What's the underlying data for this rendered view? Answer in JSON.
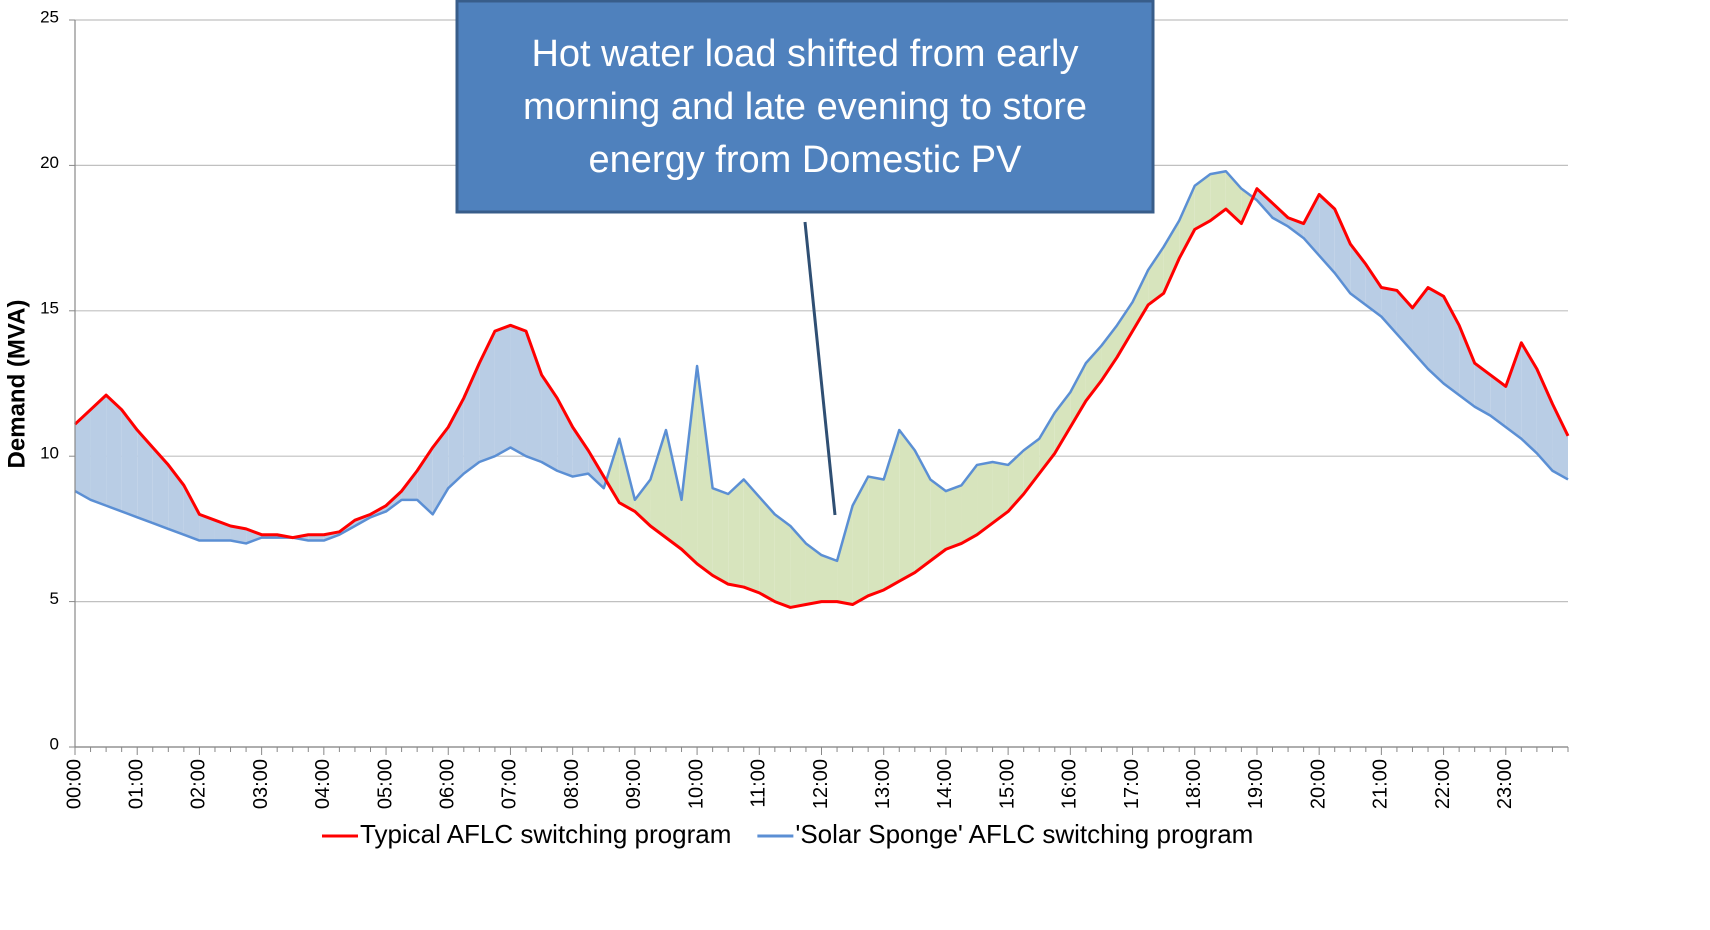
{
  "chart_data": {
    "type": "line",
    "y_label": "Demand (MVA)",
    "annotation": [
      "Hot water load shifted from early",
      "morning and late evening to store",
      "energy from Domestic PV"
    ],
    "categories": [
      "00:00",
      null,
      null,
      null,
      "01:00",
      null,
      null,
      null,
      "02:00",
      null,
      null,
      null,
      "03:00",
      null,
      null,
      null,
      "04:00",
      null,
      null,
      null,
      "05:00",
      null,
      null,
      null,
      "06:00",
      null,
      null,
      null,
      "07:00",
      null,
      null,
      null,
      "08:00",
      null,
      null,
      null,
      "09:00",
      null,
      null,
      null,
      "10:00",
      null,
      null,
      null,
      "11:00",
      null,
      null,
      null,
      "12:00",
      null,
      null,
      null,
      "13:00",
      null,
      null,
      null,
      "14:00",
      null,
      null,
      null,
      "15:00",
      null,
      null,
      null,
      "16:00",
      null,
      null,
      null,
      "17:00",
      null,
      null,
      null,
      "18:00",
      null,
      null,
      null,
      "19:00",
      null,
      null,
      null,
      "20:00",
      null,
      null,
      null,
      "21:00",
      null,
      null,
      null,
      "22:00",
      null,
      null,
      null,
      "23:00",
      null,
      null,
      null,
      null
    ],
    "series": [
      {
        "name": "Typical AFLC switching program",
        "color": "#ff0000",
        "values": [
          11.1,
          11.6,
          12.1,
          11.6,
          10.9,
          10.3,
          9.7,
          9.0,
          8.0,
          7.8,
          7.6,
          7.5,
          7.3,
          7.3,
          7.2,
          7.3,
          7.3,
          7.4,
          7.8,
          8.0,
          8.3,
          8.8,
          9.5,
          10.3,
          11.0,
          12.0,
          13.2,
          14.3,
          14.5,
          14.3,
          12.8,
          12.0,
          11.0,
          10.2,
          9.3,
          8.4,
          8.1,
          7.6,
          7.2,
          6.8,
          6.3,
          5.9,
          5.6,
          5.5,
          5.3,
          5.0,
          4.8,
          4.9,
          5.0,
          5.0,
          4.9,
          5.2,
          5.4,
          5.7,
          6.0,
          6.4,
          6.8,
          7.0,
          7.3,
          7.7,
          8.1,
          8.7,
          9.4,
          10.1,
          11.0,
          11.9,
          12.6,
          13.4,
          14.3,
          15.2,
          15.6,
          16.8,
          17.8,
          18.1,
          18.5,
          18.0,
          19.2,
          18.7,
          18.2,
          18.0,
          19.0,
          18.5,
          17.3,
          16.6,
          15.8,
          15.7,
          15.1,
          15.8,
          15.5,
          14.5,
          13.2,
          12.8,
          12.4,
          13.9,
          13.0,
          11.8,
          10.7
        ]
      },
      {
        "name": "'Solar Sponge' AFLC switching program",
        "color": "#5b8fd4",
        "values": [
          8.8,
          8.5,
          8.3,
          8.1,
          7.9,
          7.7,
          7.5,
          7.3,
          7.1,
          7.1,
          7.1,
          7.0,
          7.2,
          7.2,
          7.2,
          7.1,
          7.1,
          7.3,
          7.6,
          7.9,
          8.1,
          8.5,
          8.5,
          8.0,
          8.9,
          9.4,
          9.8,
          10.0,
          10.3,
          10.0,
          9.8,
          9.5,
          9.3,
          9.4,
          8.9,
          10.6,
          8.5,
          9.2,
          10.9,
          8.5,
          13.1,
          8.9,
          8.7,
          9.2,
          8.6,
          8.0,
          7.6,
          7.0,
          6.6,
          6.4,
          8.3,
          9.3,
          9.2,
          10.9,
          10.2,
          9.2,
          8.8,
          9.0,
          9.7,
          9.8,
          9.7,
          10.2,
          10.6,
          11.5,
          12.2,
          13.2,
          13.8,
          14.5,
          15.3,
          16.4,
          17.2,
          18.1,
          19.3,
          19.7,
          19.8,
          19.2,
          18.8,
          18.2,
          17.9,
          17.5,
          16.9,
          16.3,
          15.6,
          15.2,
          14.8,
          14.2,
          13.6,
          13.0,
          12.5,
          12.1,
          11.7,
          11.4,
          11.0,
          10.6,
          10.1,
          9.5,
          9.2
        ]
      }
    ],
    "fill_between": {
      "first_higher": "#b9cde5",
      "second_higher": "#d7e4bd"
    },
    "ylim": [
      0,
      25
    ],
    "yticks": [
      0,
      5,
      10,
      15,
      20,
      25
    ],
    "grid": true,
    "legend": "bottom"
  }
}
